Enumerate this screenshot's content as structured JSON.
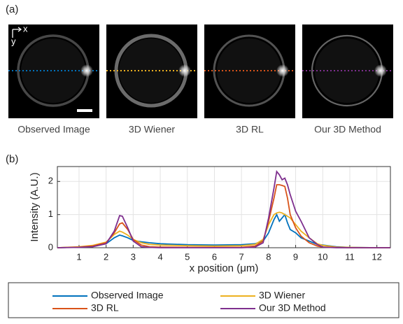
{
  "panel_labels": [
    "(a)",
    "(b)"
  ],
  "axis_arrows": [
    "x",
    "y"
  ],
  "images": [
    {
      "caption": "Observed Image"
    },
    {
      "caption": "3D Wiener"
    },
    {
      "caption": "3D RL"
    },
    {
      "caption": "Our 3D Method"
    }
  ],
  "chart_data": {
    "type": "line",
    "xlabel": "x position (μm)",
    "ylabel": "Intensity (A.U.)",
    "x": [
      0.2,
      1,
      1.5,
      2,
      2.3,
      2.5,
      2.6,
      2.8,
      3,
      3.3,
      3.6,
      4,
      5,
      6,
      7,
      7.5,
      7.8,
      8,
      8.2,
      8.3,
      8.4,
      8.5,
      8.6,
      8.7,
      8.8,
      9,
      9.2,
      9.5,
      9.8,
      10,
      10.5,
      11,
      12,
      12.5
    ],
    "series": [
      {
        "name": "Observed Image",
        "color": "#0072bd",
        "values": [
          0,
          0.02,
          0.05,
          0.12,
          0.3,
          0.38,
          0.36,
          0.3,
          0.22,
          0.18,
          0.15,
          0.12,
          0.09,
          0.08,
          0.09,
          0.12,
          0.2,
          0.45,
          0.85,
          1.0,
          0.8,
          0.9,
          1.0,
          0.75,
          0.55,
          0.45,
          0.3,
          0.2,
          0.1,
          0.08,
          0.03,
          0.01,
          0,
          0
        ]
      },
      {
        "name": "3D Wiener",
        "color": "#edb120",
        "values": [
          0,
          0.03,
          0.07,
          0.17,
          0.4,
          0.5,
          0.47,
          0.38,
          0.25,
          0.15,
          0.1,
          0.08,
          0.06,
          0.05,
          0.06,
          0.1,
          0.25,
          0.7,
          1.0,
          1.05,
          1.07,
          1.05,
          1.0,
          0.95,
          0.9,
          0.7,
          0.5,
          0.3,
          0.12,
          0.07,
          0.02,
          0.01,
          0,
          0
        ]
      },
      {
        "name": "3D RL",
        "color": "#d95319",
        "values": [
          0,
          0.02,
          0.05,
          0.15,
          0.45,
          0.72,
          0.75,
          0.55,
          0.25,
          0.08,
          0.03,
          0.02,
          0.01,
          0.01,
          0.01,
          0.05,
          0.2,
          0.8,
          1.5,
          1.9,
          1.9,
          1.88,
          1.85,
          1.5,
          1.0,
          0.6,
          0.35,
          0.15,
          0.05,
          0.02,
          0.01,
          0,
          0,
          0
        ]
      },
      {
        "name": "Our 3D Method",
        "color": "#7e2f8e",
        "values": [
          0,
          0.01,
          0.03,
          0.12,
          0.5,
          0.97,
          0.95,
          0.6,
          0.2,
          0.03,
          0.01,
          0,
          0,
          0,
          0,
          0.02,
          0.15,
          0.9,
          1.8,
          2.3,
          2.2,
          2.05,
          2.1,
          1.9,
          1.6,
          1.1,
          0.8,
          0.3,
          0.1,
          0.02,
          0,
          0,
          0,
          0
        ]
      }
    ],
    "xlim": [
      0.2,
      12.5
    ],
    "ylim": [
      0,
      2.45
    ],
    "xticks": [
      1,
      2,
      3,
      4,
      5,
      6,
      7,
      8,
      9,
      10,
      11,
      12
    ],
    "yticks": [
      0,
      1,
      2
    ],
    "grid": true,
    "legend": "bottom"
  }
}
